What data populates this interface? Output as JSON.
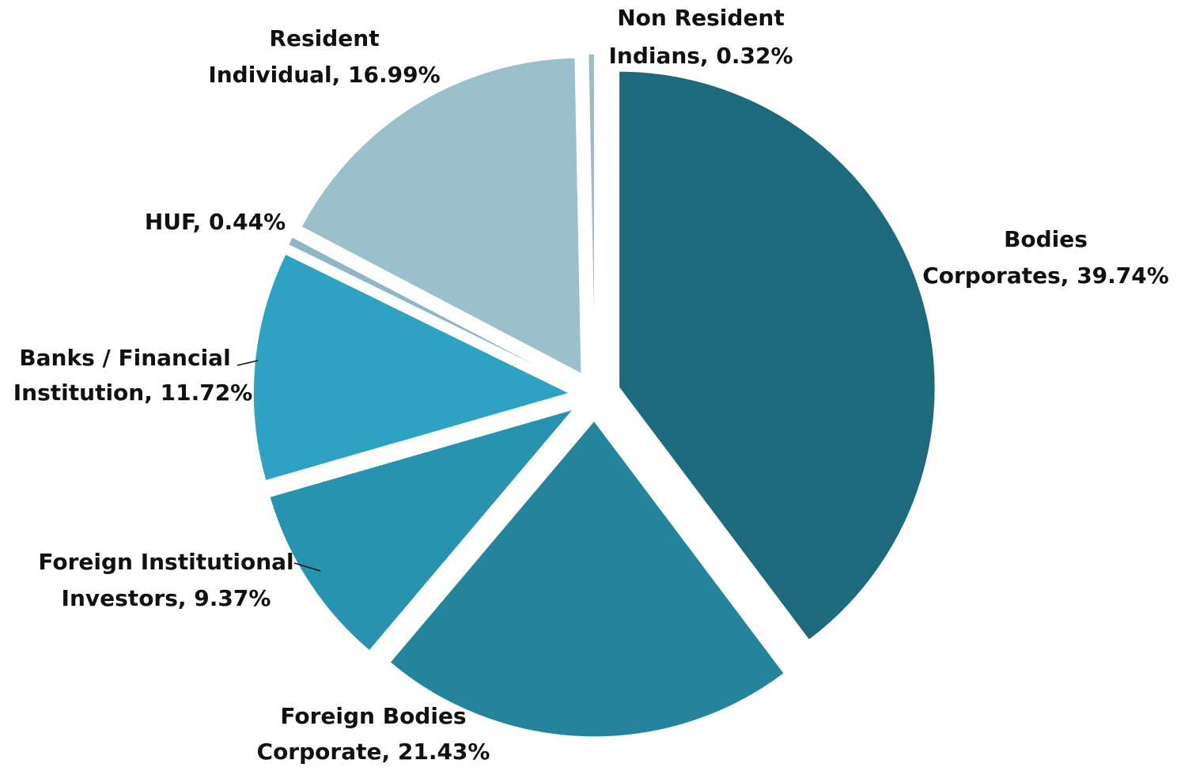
{
  "chart_data": {
    "type": "pie",
    "values": [
      39.74,
      21.43,
      9.37,
      11.72,
      0.44,
      16.99,
      0.32
    ],
    "value_labels": [
      [
        "Bodies",
        "Corporates, 39.74%"
      ],
      [
        "Foreign Bodies",
        "Corporate, 21.43%"
      ],
      [
        "Foreign Institutional",
        "Investors, 9.37%"
      ],
      [
        "Banks / Financial",
        "Institution, 11.72%"
      ],
      [
        "HUF, 0.44%"
      ],
      [
        "Resident",
        "Individual, 16.99%"
      ],
      [
        "Non Resident",
        "Indians, 0.32%"
      ]
    ],
    "colors": [
      "#1d6a7c",
      "#23849b",
      "#2893ae",
      "#2ea2c2",
      "#8fb6c4",
      "#9cbfcc",
      "#9fbcc6"
    ]
  }
}
